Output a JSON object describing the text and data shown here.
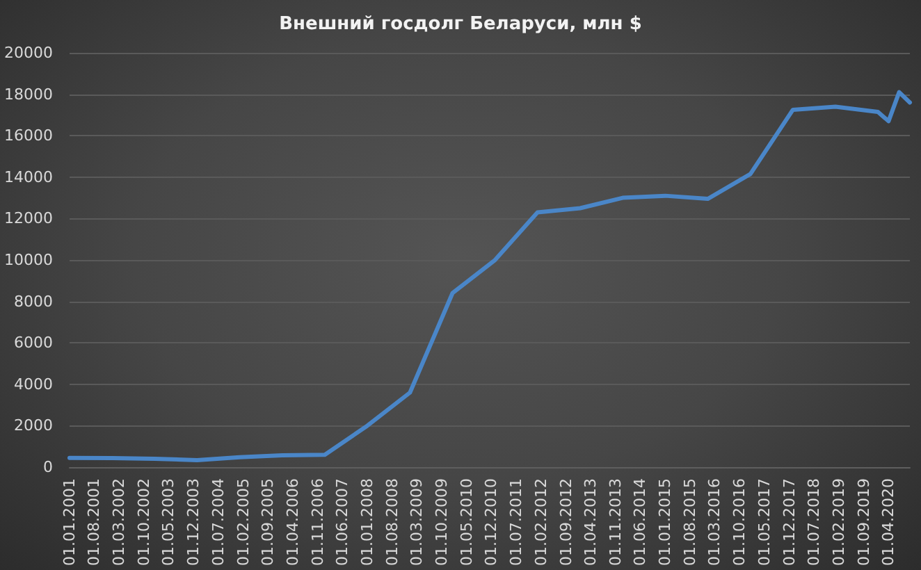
{
  "chart_data": {
    "type": "line",
    "title": "Внешний госдолг Беларуси, млн $",
    "x": [
      "2001-01-01",
      "2002-01-01",
      "2003-01-01",
      "2004-01-01",
      "2005-01-01",
      "2006-01-01",
      "2007-01-01",
      "2008-01-01",
      "2009-01-01",
      "2010-01-01",
      "2011-01-01",
      "2012-01-01",
      "2013-01-01",
      "2014-01-01",
      "2015-01-01",
      "2016-01-01",
      "2017-01-01",
      "2018-01-01",
      "2019-01-01",
      "2020-01-01",
      "2020-04-01",
      "2020-07-01",
      "2020-10-01"
    ],
    "values": [
      450,
      440,
      400,
      340,
      480,
      570,
      600,
      2000,
      3600,
      8400,
      10000,
      12300,
      12500,
      13000,
      13100,
      12950,
      14150,
      17250,
      17400,
      17150,
      16700,
      18100,
      17600
    ],
    "color": "#4a86c8",
    "marker": "none",
    "line_style": "solid",
    "xlim": [
      "2001-01-01",
      "2020-10-01"
    ],
    "xticks": [
      {
        "value": "2001-01-01",
        "label": "01.01.2001"
      },
      {
        "value": "2001-08-01",
        "label": "01.08.2001"
      },
      {
        "value": "2002-03-01",
        "label": "01.03.2002"
      },
      {
        "value": "2002-10-01",
        "label": "01.10.2002"
      },
      {
        "value": "2003-05-01",
        "label": "01.05.2003"
      },
      {
        "value": "2003-12-01",
        "label": "01.12.2003"
      },
      {
        "value": "2004-07-01",
        "label": "01.07.2004"
      },
      {
        "value": "2005-02-01",
        "label": "01.02.2005"
      },
      {
        "value": "2005-09-01",
        "label": "01.09.2005"
      },
      {
        "value": "2006-04-01",
        "label": "01.04.2006"
      },
      {
        "value": "2006-11-01",
        "label": "01.11.2006"
      },
      {
        "value": "2007-06-01",
        "label": "01.06.2007"
      },
      {
        "value": "2008-01-01",
        "label": "01.01.2008"
      },
      {
        "value": "2008-08-01",
        "label": "01.08.2008"
      },
      {
        "value": "2009-03-01",
        "label": "01.03.2009"
      },
      {
        "value": "2009-10-01",
        "label": "01.10.2009"
      },
      {
        "value": "2010-05-01",
        "label": "01.05.2010"
      },
      {
        "value": "2010-12-01",
        "label": "01.12.2010"
      },
      {
        "value": "2011-07-01",
        "label": "01.07.2011"
      },
      {
        "value": "2012-02-01",
        "label": "01.02.2012"
      },
      {
        "value": "2012-09-01",
        "label": "01.09.2012"
      },
      {
        "value": "2013-04-01",
        "label": "01.04.2013"
      },
      {
        "value": "2013-11-01",
        "label": "01.11.2013"
      },
      {
        "value": "2014-06-01",
        "label": "01.06.2014"
      },
      {
        "value": "2015-01-01",
        "label": "01.01.2015"
      },
      {
        "value": "2015-08-01",
        "label": "01.08.2015"
      },
      {
        "value": "2016-03-01",
        "label": "01.03.2016"
      },
      {
        "value": "2016-10-01",
        "label": "01.10.2016"
      },
      {
        "value": "2017-05-01",
        "label": "01.05.2017"
      },
      {
        "value": "2017-12-01",
        "label": "01.12.2017"
      },
      {
        "value": "2018-07-01",
        "label": "01.07.2018"
      },
      {
        "value": "2019-02-01",
        "label": "01.02.2019"
      },
      {
        "value": "2019-09-01",
        "label": "01.09.2019"
      },
      {
        "value": "2020-04-01",
        "label": "01.04.2020"
      }
    ],
    "ylim": [
      0,
      20000
    ],
    "yticks": [
      0,
      2000,
      4000,
      6000,
      8000,
      10000,
      12000,
      14000,
      16000,
      18000,
      20000
    ],
    "grid": "y"
  }
}
